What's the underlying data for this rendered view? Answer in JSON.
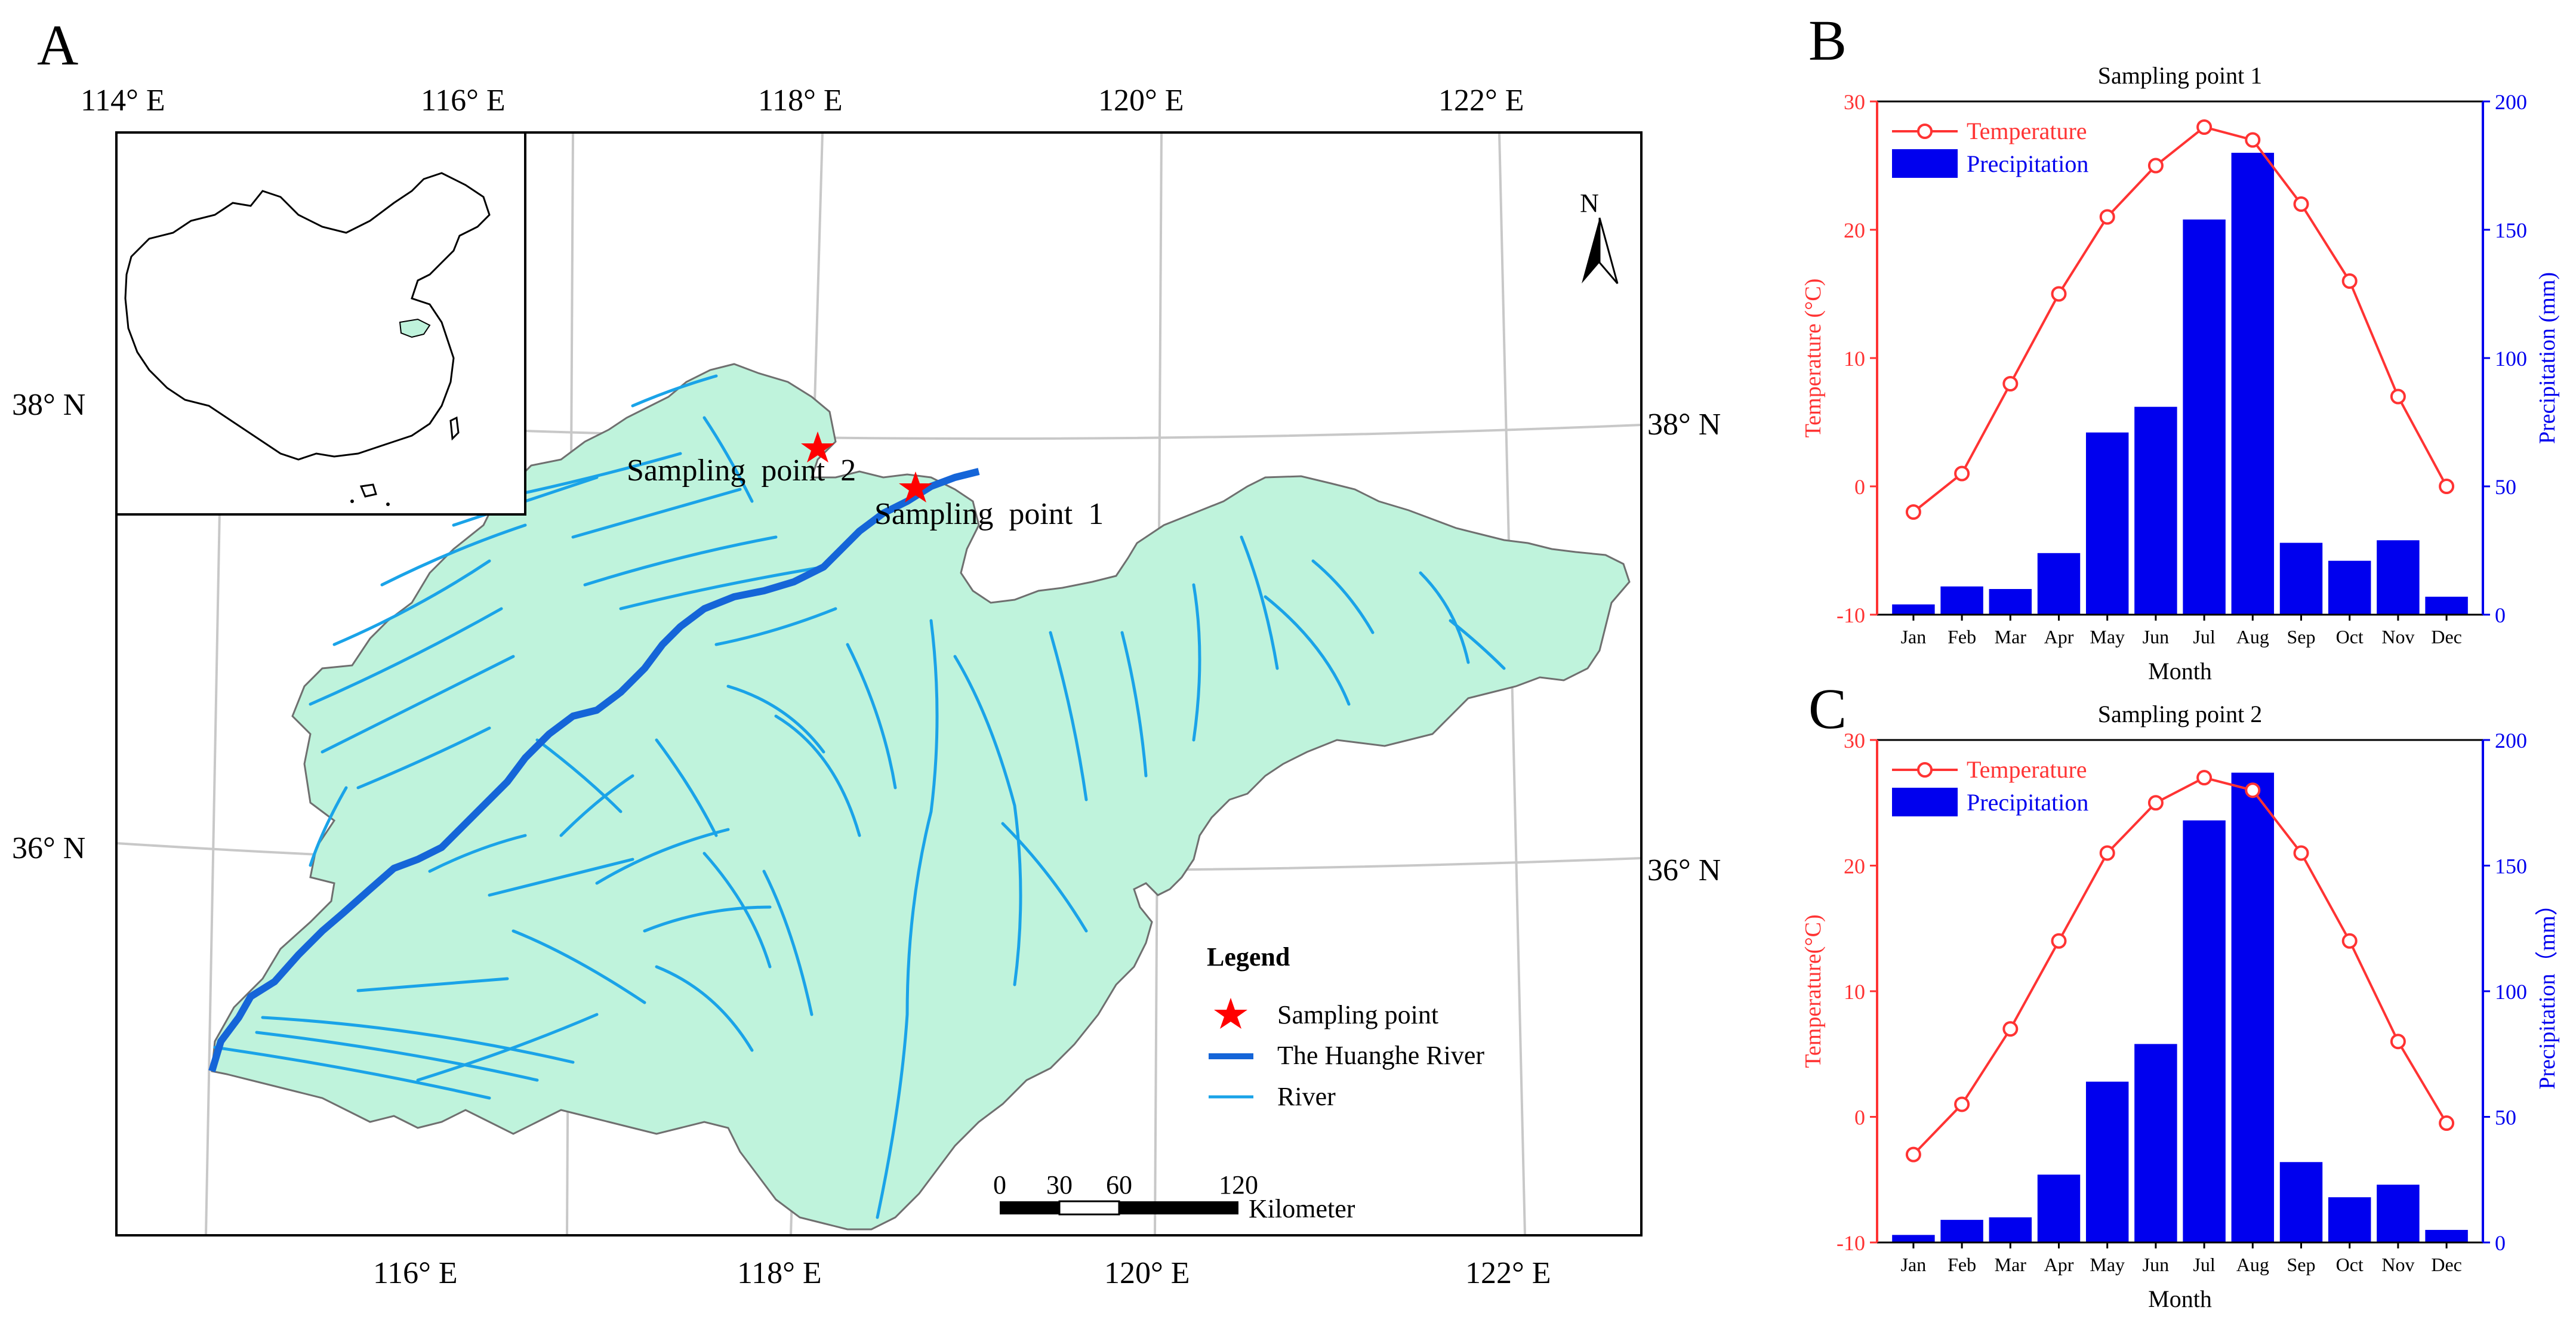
{
  "panels": {
    "a": "A",
    "b": "B",
    "c": "C"
  },
  "map": {
    "top_lon_labels": [
      "114° E",
      "116° E",
      "118° E",
      "120° E",
      "122° E"
    ],
    "bottom_lon_labels": [
      "116° E",
      "118° E",
      "120° E",
      "122° E"
    ],
    "left_lat_labels": [
      "38° N",
      "36° N"
    ],
    "right_lat_labels": [
      "38° N",
      "36° N"
    ],
    "north_label": "N",
    "sampling_point_1_label": "Sampling  point  1",
    "sampling_point_2_label": "Sampling  point  2",
    "legend": {
      "title": "Legend",
      "sampling_point": "Sampling point",
      "huanghe": "The Huanghe River",
      "river": "River"
    },
    "scale_bar": {
      "ticks": [
        "0",
        "30",
        "60",
        "120"
      ],
      "unit": "Kilometer"
    },
    "colors": {
      "land": "#bff3dc",
      "river": "#1aa3e8",
      "huanghe": "#1565d8",
      "star": "#ff0000"
    }
  },
  "chart_data": [
    {
      "type": "bar+line",
      "title": "Sampling point 1",
      "categories": [
        "Jan",
        "Feb",
        "Mar",
        "Apr",
        "May",
        "Jun",
        "Jul",
        "Aug",
        "Sep",
        "Oct",
        "Nov",
        "Dec"
      ],
      "xlabel": "Month",
      "ylabel_left": "Temperature (°C)",
      "ylabel_right": "Precipitation (mm)",
      "ylim_left": [
        -10,
        30
      ],
      "ylim_right": [
        0,
        200
      ],
      "left_ticks": [
        "-10",
        "0",
        "10",
        "20",
        "30"
      ],
      "right_ticks": [
        "0",
        "50",
        "100",
        "150",
        "200"
      ],
      "series": [
        {
          "name": "Temperature",
          "axis": "left",
          "values": [
            -2,
            1,
            8,
            15,
            21,
            25,
            28,
            27,
            22,
            16,
            7,
            0
          ]
        },
        {
          "name": "Precipitation",
          "axis": "right",
          "values": [
            4,
            11,
            10,
            24,
            71,
            81,
            154,
            180,
            28,
            21,
            29,
            7
          ]
        }
      ],
      "legend_position": "top-left",
      "colors": {
        "Temperature": "#ff3333",
        "Precipitation": "#0000ee"
      }
    },
    {
      "type": "bar+line",
      "title": "Sampling point 2",
      "categories": [
        "Jan",
        "Feb",
        "Mar",
        "Apr",
        "May",
        "Jun",
        "Jul",
        "Aug",
        "Sep",
        "Oct",
        "Nov",
        "Dec"
      ],
      "xlabel": "Month",
      "ylabel_left": "Temperature(°C)",
      "ylabel_right": "Precipitation（mm）",
      "ylim_left": [
        -10,
        30
      ],
      "ylim_right": [
        0,
        200
      ],
      "left_ticks": [
        "-10",
        "0",
        "10",
        "20",
        "30"
      ],
      "right_ticks": [
        "0",
        "50",
        "100",
        "150",
        "200"
      ],
      "series": [
        {
          "name": "Temperature",
          "axis": "left",
          "values": [
            -3,
            1,
            7,
            14,
            21,
            25,
            27,
            26,
            21,
            14,
            6,
            -0.5
          ]
        },
        {
          "name": "Precipitation",
          "axis": "right",
          "values": [
            3,
            9,
            10,
            27,
            64,
            79,
            168,
            187,
            32,
            18,
            23,
            5
          ]
        }
      ],
      "legend_position": "top-left",
      "colors": {
        "Temperature": "#ff3333",
        "Precipitation": "#0000ee"
      }
    }
  ]
}
